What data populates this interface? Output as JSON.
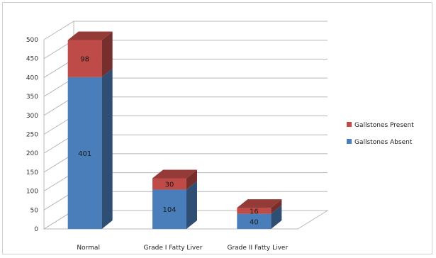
{
  "chart_data": {
    "type": "bar",
    "stacked": true,
    "style": "3d",
    "categories": [
      "Normal",
      "Grade I Fatty Liver",
      "Grade II Fatty Liver"
    ],
    "series": [
      {
        "name": "Gallstones Absent",
        "values": [
          401,
          104,
          40
        ],
        "color": "#4a7ebb"
      },
      {
        "name": "Gallstones Present",
        "values": [
          98,
          30,
          16
        ],
        "color": "#be4b48"
      }
    ],
    "ylim": [
      0,
      500
    ],
    "yticks": [
      0,
      50,
      100,
      150,
      200,
      250,
      300,
      350,
      400,
      450,
      500
    ],
    "grid": true,
    "legend_position": "right",
    "title": "",
    "xlabel": "",
    "ylabel": ""
  }
}
